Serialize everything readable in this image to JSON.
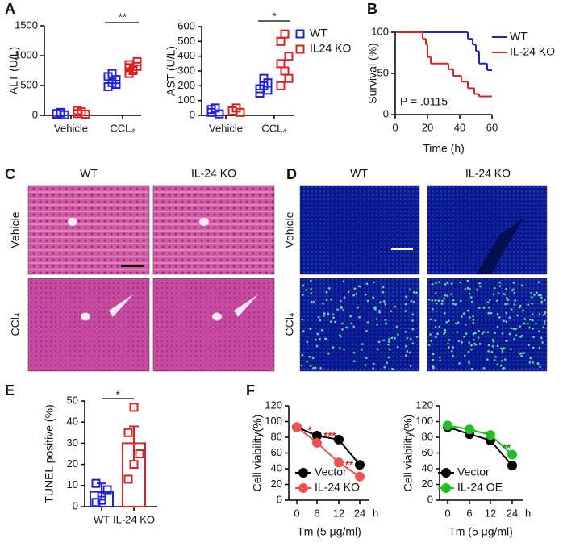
{
  "panel_labels": [
    "A",
    "B",
    "C",
    "D",
    "E",
    "F"
  ],
  "chart_data": [
    {
      "type": "dot",
      "y_label": "ALT (U/L)",
      "categories": [
        "Vehicle",
        "CCL₄"
      ],
      "ylim": [
        0,
        1500
      ],
      "yticks": [
        0,
        500,
        1000,
        1500
      ],
      "series": [
        {
          "color": "#2020dd",
          "values": [
            [
              20,
              40,
              10,
              30,
              50
            ],
            [
              480,
              550,
              600,
              650,
              700,
              520
            ]
          ]
        },
        {
          "color": "#e02020",
          "values": [
            [
              30,
              60,
              20,
              80
            ],
            [
              700,
              780,
              820,
              850,
              750,
              900,
              800
            ]
          ]
        }
      ],
      "annotations": [
        "**"
      ]
    },
    {
      "type": "dot",
      "y_label": "AST (U/L)",
      "categories": [
        "Vehicle",
        "CCL₄"
      ],
      "ylim": [
        0,
        600
      ],
      "yticks": [
        0,
        100,
        200,
        300,
        400,
        500,
        600
      ],
      "series": [
        {
          "name": "WT",
          "color": "#2020dd",
          "values": [
            [
              20,
              50,
              10,
              40
            ],
            [
              150,
              200,
              220,
              180,
              250,
              170
            ]
          ]
        },
        {
          "name": "IL24 KO",
          "color": "#e02020",
          "values": [
            [
              30,
              50,
              20
            ],
            [
              200,
              300,
              400,
              500,
              550,
              250,
              350
            ]
          ]
        }
      ],
      "annotations": [
        "*"
      ]
    },
    {
      "type": "step",
      "x_label": "Time (h)",
      "y_label": "Survival (%)",
      "xlim": [
        0,
        60
      ],
      "xticks": [
        0,
        20,
        40,
        60
      ],
      "ylim": [
        0,
        100
      ],
      "yticks": [
        0,
        50,
        100
      ],
      "series": [
        {
          "name": "WT",
          "color": "#2020dd",
          "x": [
            0,
            45,
            48,
            50,
            52,
            57
          ],
          "values": [
            100,
            92,
            85,
            77,
            62,
            54
          ]
        },
        {
          "name": "IL-24 KO",
          "color": "#e02020",
          "x": [
            0,
            17,
            19,
            20,
            22,
            33,
            36,
            41,
            45,
            49,
            52
          ],
          "values": [
            100,
            92,
            85,
            70,
            62,
            55,
            47,
            40,
            32,
            25,
            22
          ]
        }
      ],
      "annotations": [
        "P = .0115"
      ]
    },
    {
      "type": "bar_dot",
      "y_label": "TUNEL positive (%)",
      "categories": [
        "WT",
        "IL-24 KO"
      ],
      "ylim": [
        0,
        50
      ],
      "yticks": [
        0,
        10,
        20,
        30,
        40,
        50
      ],
      "colors": [
        "#2020dd",
        "#e02020"
      ],
      "values": [
        7,
        30
      ],
      "errors": [
        4,
        8
      ],
      "points": [
        [
          2,
          5,
          8,
          11,
          3
        ],
        [
          13,
          20,
          25,
          35,
          47
        ]
      ],
      "annotations": [
        "*"
      ]
    },
    {
      "type": "line",
      "y_label": "Cell viability(%)",
      "x_label": "Tm (5 μg/ml)",
      "categories": [
        "0",
        "6",
        "12",
        "24"
      ],
      "x_unit": "h",
      "ylim": [
        0,
        120
      ],
      "yticks": [
        0,
        20,
        40,
        60,
        80,
        100,
        120
      ],
      "series": [
        {
          "name": "Vector",
          "color": "#000000",
          "values": [
            93,
            82,
            77,
            45
          ]
        },
        {
          "name": "IL-24 KO",
          "color": "#f05050",
          "values": [
            93,
            73,
            48,
            30
          ]
        }
      ],
      "annotations": [
        "*",
        "***",
        "**"
      ],
      "annotation_color": "#e02020"
    },
    {
      "type": "line",
      "y_label": "Cell viability(%)",
      "x_label": "Tm (5 μg/ml)",
      "categories": [
        "0",
        "6",
        "12",
        "24"
      ],
      "x_unit": "h",
      "ylim": [
        0,
        120
      ],
      "yticks": [
        0,
        20,
        40,
        60,
        80,
        100,
        120
      ],
      "series": [
        {
          "name": "Vector",
          "color": "#000000",
          "values": [
            93,
            84,
            76,
            44
          ]
        },
        {
          "name": "IL-24 OE",
          "color": "#20c020",
          "values": [
            95,
            90,
            83,
            58
          ]
        }
      ],
      "annotations": [
        "**"
      ],
      "annotation_color": "#109010"
    }
  ],
  "image_panels": [
    {
      "columns": [
        "WT",
        "IL-24 KO"
      ],
      "rows": [
        "Vehicle",
        "CCl₄"
      ]
    },
    {
      "columns": [
        "WT",
        "IL-24 KO"
      ],
      "rows": [
        "Vehicle",
        "CCl₄"
      ]
    }
  ]
}
